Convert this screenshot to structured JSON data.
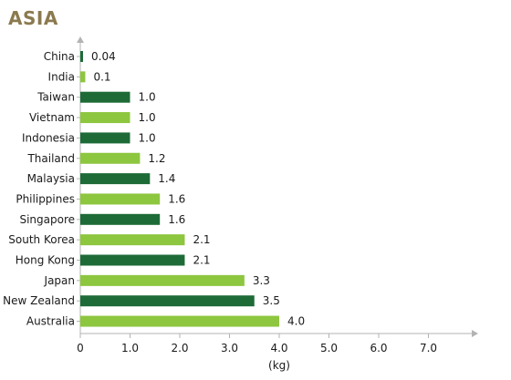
{
  "chart_data": {
    "type": "bar",
    "orientation": "horizontal",
    "title": "ASIA",
    "xlabel": "(kg)",
    "ylabel": "",
    "categories": [
      "China",
      "India",
      "Taiwan",
      "Vietnam",
      "Indonesia",
      "Thailand",
      "Malaysia",
      "Philippines",
      "Singapore",
      "South Korea",
      "Hong Kong",
      "Japan",
      "New Zealand",
      "Australia"
    ],
    "values": [
      0.04,
      0.1,
      1.0,
      1.0,
      1.0,
      1.2,
      1.4,
      1.6,
      1.6,
      2.1,
      2.1,
      3.3,
      3.5,
      4.0
    ],
    "value_labels": [
      "0.04",
      "0.1",
      "1.0",
      "1.0",
      "1.0",
      "1.2",
      "1.4",
      "1.6",
      "1.6",
      "2.1",
      "2.1",
      "3.3",
      "3.5",
      "4.0"
    ],
    "bar_colors": [
      "dark",
      "light",
      "dark",
      "light",
      "dark",
      "light",
      "dark",
      "light",
      "dark",
      "light",
      "dark",
      "light",
      "dark",
      "light"
    ],
    "colors": {
      "dark": "#1e6b38",
      "light": "#8dc63f",
      "axis": "#b3b3b3",
      "title": "#8b7a4f"
    },
    "xlim": [
      0,
      8
    ],
    "xticks": [
      "0",
      "1.0",
      "2.0",
      "3.0",
      "4.0",
      "5.0",
      "6.0",
      "7.0"
    ],
    "grid": false,
    "legend": "none"
  }
}
